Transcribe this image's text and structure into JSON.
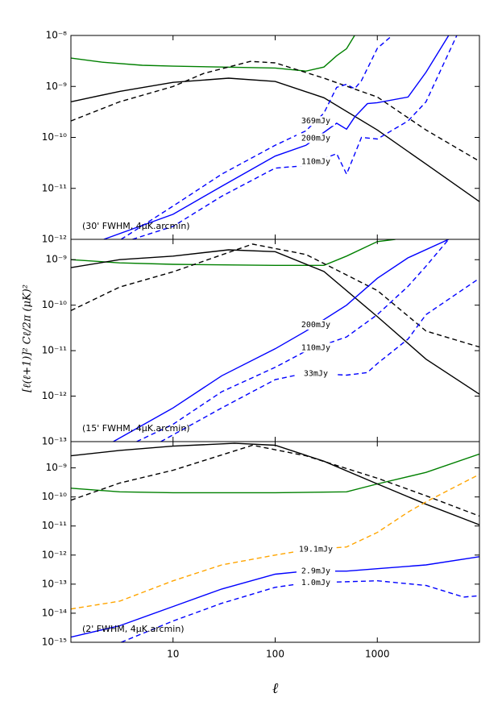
{
  "chart_data": [
    {
      "type": "line",
      "xscale": "log",
      "yscale": "log",
      "xlim": [
        1,
        10000
      ],
      "ylim": [
        1e-12,
        1e-08
      ],
      "yticks": [
        {
          "value": 1e-12,
          "label": "10⁻¹²"
        },
        {
          "value": 1e-11,
          "label": "10⁻¹¹"
        },
        {
          "value": 1e-10,
          "label": "10⁻¹⁰"
        },
        {
          "value": 1e-09,
          "label": "10⁻⁹"
        },
        {
          "value": 1e-08,
          "label": "10⁻⁸"
        }
      ],
      "annotation": "(30' FWHM, 4μK.arcmin)",
      "series": [
        {
          "color": "#008000",
          "dash": false,
          "x": [
            1,
            2,
            5,
            10,
            30,
            100,
            200,
            300,
            400,
            500,
            600
          ],
          "values": [
            3.6e-09,
            3e-09,
            2.6e-09,
            2.5e-09,
            2.4e-09,
            2.3e-09,
            2e-09,
            2.4e-09,
            4e-09,
            5.5e-09,
            1e-08
          ]
        },
        {
          "color": "#000000",
          "dash": false,
          "x": [
            1,
            3,
            10,
            35,
            100,
            300,
            1000,
            3000,
            10000
          ],
          "values": [
            5e-10,
            8e-10,
            1.2e-09,
            1.45e-09,
            1.25e-09,
            6e-10,
            1.4e-10,
            3e-11,
            5.5e-12
          ]
        },
        {
          "color": "#000000",
          "dash": true,
          "x": [
            1,
            3,
            10,
            20,
            57,
            100,
            300,
            1000,
            3000,
            10000
          ],
          "values": [
            2.1e-10,
            5e-10,
            1e-09,
            1.8e-09,
            3.1e-09,
            2.9e-09,
            1.45e-09,
            6.2e-10,
            1.4e-10,
            3.4e-11
          ]
        },
        {
          "name": "369mJy",
          "color": "#0000ff",
          "dash": true,
          "x": [
            3.1,
            10,
            30,
            100,
            200,
            300,
            400,
            500,
            600,
            700,
            1000,
            1400
          ],
          "values": [
            1e-12,
            4.5e-12,
            1.9e-11,
            7e-11,
            1.35e-10,
            3e-10,
            9.6e-10,
            1.1e-09,
            9e-10,
            1.3e-09,
            5.6e-09,
            1e-08
          ]
        },
        {
          "name": "200mJy",
          "color": "#0000ff",
          "dash": false,
          "x": [
            2.1,
            10,
            30,
            100,
            200,
            400,
            500,
            600,
            800,
            1000,
            2000,
            3000,
            5000
          ],
          "values": [
            1e-12,
            3.1e-12,
            1.1e-11,
            4.3e-11,
            7e-11,
            1.9e-10,
            1.45e-10,
            2.5e-10,
            4.6e-10,
            4.8e-10,
            6.2e-10,
            1.9e-09,
            1e-08
          ]
        },
        {
          "name": "110mJy",
          "color": "#0000ff",
          "dash": true,
          "x": [
            4,
            10,
            30,
            100,
            200,
            400,
            500,
            700,
            1000,
            2000,
            3000,
            6000
          ],
          "values": [
            1e-12,
            1.8e-12,
            7e-12,
            2.5e-11,
            2.8e-11,
            4.8e-11,
            1.9e-11,
            1e-10,
            9.3e-11,
            2.1e-10,
            5e-10,
            1e-08
          ]
        }
      ]
    },
    {
      "type": "line",
      "xscale": "log",
      "yscale": "log",
      "xlim": [
        1,
        10000
      ],
      "ylim": [
        1e-13,
        2.8e-09
      ],
      "yticks": [
        {
          "value": 1e-13,
          "label": "10⁻¹³"
        },
        {
          "value": 1e-12,
          "label": "10⁻¹²"
        },
        {
          "value": 1e-11,
          "label": "10⁻¹¹"
        },
        {
          "value": 1e-10,
          "label": "10⁻¹⁰"
        },
        {
          "value": 1e-09,
          "label": "10⁻⁹"
        }
      ],
      "ylabel": "[ℓ(ℓ+1)]² Cℓ/2π  (μK)²",
      "annotation": "(15' FWHM, 4μK.arcmin)",
      "series": [
        {
          "color": "#008000",
          "dash": false,
          "x": [
            1,
            3,
            10,
            100,
            300,
            500,
            1000,
            1500
          ],
          "values": [
            1e-09,
            8.5e-10,
            7.9e-10,
            7.5e-10,
            7.5e-10,
            1.2e-09,
            2.5e-09,
            2.8e-09
          ]
        },
        {
          "color": "#000000",
          "dash": false,
          "x": [
            1,
            3,
            10,
            35,
            100,
            300,
            1000,
            3000,
            10000
          ],
          "values": [
            6.7e-10,
            1e-09,
            1.2e-09,
            1.65e-09,
            1.5e-09,
            5.5e-10,
            5.6e-11,
            6.5e-12,
            1.1e-12
          ]
        },
        {
          "color": "#000000",
          "dash": true,
          "x": [
            1,
            3,
            10,
            60,
            200,
            1000,
            3000,
            10000
          ],
          "values": [
            7.6e-11,
            2.5e-10,
            5.4e-10,
            2.2e-09,
            1.3e-09,
            2.1e-10,
            2.7e-11,
            1.2e-11
          ]
        },
        {
          "name": "200mJy",
          "color": "#0000ff",
          "dash": false,
          "x": [
            2.6,
            10,
            30,
            100,
            200,
            500,
            1000,
            2000,
            5000
          ],
          "values": [
            1e-13,
            5.5e-13,
            2.8e-12,
            1.1e-11,
            2.7e-11,
            1e-10,
            3.9e-10,
            1.1e-09,
            2.8e-09
          ]
        },
        {
          "name": "110mJy",
          "color": "#0000ff",
          "dash": true,
          "x": [
            4.4,
            10,
            30,
            100,
            200,
            500,
            1000,
            2000,
            3000,
            5000
          ],
          "values": [
            1e-13,
            2.4e-13,
            1.25e-12,
            4.3e-12,
            9.8e-12,
            2e-11,
            6.2e-11,
            2.6e-10,
            7.2e-10,
            2.8e-09
          ]
        },
        {
          "name": "33mJy",
          "color": "#0000ff",
          "dash": true,
          "x": [
            7.6,
            30,
            100,
            200,
            500,
            800,
            1000,
            2000,
            3000,
            10000
          ],
          "values": [
            1e-13,
            5.5e-13,
            2.3e-12,
            3.2e-12,
            2.9e-12,
            3.3e-12,
            5.2e-12,
            1.8e-11,
            6.2e-11,
            3.9e-10
          ]
        }
      ]
    },
    {
      "type": "line",
      "xscale": "log",
      "yscale": "log",
      "xlim": [
        1,
        10000
      ],
      "ylim": [
        1e-15,
        8e-09
      ],
      "xticks": [
        10,
        100,
        1000
      ],
      "xlabel": "ℓ",
      "yticks": [
        {
          "value": 1e-15,
          "label": "10⁻¹⁵"
        },
        {
          "value": 1e-14,
          "label": "10⁻¹⁴"
        },
        {
          "value": 1e-13,
          "label": "10⁻¹³"
        },
        {
          "value": 1e-12,
          "label": "10⁻¹²"
        },
        {
          "value": 1e-11,
          "label": "10⁻¹¹"
        },
        {
          "value": 1e-10,
          "label": "10⁻¹⁰"
        },
        {
          "value": 1e-09,
          "label": "10⁻⁹"
        }
      ],
      "annotation": "(2' FWHM, 4μK.arcmin)",
      "series": [
        {
          "color": "#008000",
          "dash": false,
          "x": [
            1,
            3,
            10,
            100,
            500,
            1000,
            3000,
            10000
          ],
          "values": [
            2e-10,
            1.5e-10,
            1.4e-10,
            1.4e-10,
            1.5e-10,
            2.8e-10,
            7e-10,
            3e-09
          ]
        },
        {
          "color": "#000000",
          "dash": false,
          "x": [
            1,
            3,
            10,
            40,
            100,
            300,
            1000,
            3000,
            10000
          ],
          "values": [
            2.6e-09,
            4e-09,
            5.6e-09,
            7e-09,
            6e-09,
            1.7e-09,
            2.8e-10,
            5.6e-11,
            1.1e-11
          ]
        },
        {
          "color": "#000000",
          "dash": true,
          "x": [
            1,
            3,
            10,
            60,
            200,
            1000,
            3000,
            10000
          ],
          "values": [
            7.7e-11,
            3e-10,
            8.3e-10,
            6e-09,
            2.6e-09,
            4.4e-10,
            1.1e-10,
            2.2e-11
          ]
        },
        {
          "name": "19.1mJy",
          "color": "#ffa500",
          "dash": true,
          "x": [
            1,
            3,
            10,
            30,
            100,
            200,
            500,
            1000,
            2000,
            3000,
            10000
          ],
          "values": [
            1.4e-14,
            2.6e-14,
            1.3e-13,
            4.6e-13,
            1e-12,
            1.5e-12,
            1.9e-12,
            6e-12,
            3e-11,
            6.8e-11,
            6e-10
          ]
        },
        {
          "name": "2.9mJy",
          "color": "#0000ff",
          "dash": false,
          "x": [
            1,
            3,
            10,
            30,
            100,
            200,
            500,
            1000,
            3000,
            10000
          ],
          "values": [
            1.5e-15,
            3.7e-15,
            1.7e-14,
            6.8e-14,
            2.2e-13,
            2.8e-13,
            2.8e-13,
            3.4e-13,
            4.6e-13,
            8.8e-13
          ]
        },
        {
          "name": "1.0mJy",
          "color": "#0000ff",
          "dash": true,
          "x": [
            3.1,
            10,
            30,
            100,
            200,
            1000,
            3000,
            7000,
            10000
          ],
          "values": [
            1e-15,
            5.4e-15,
            2.2e-14,
            7.8e-14,
            1.1e-13,
            1.3e-13,
            9e-14,
            3.6e-14,
            4e-14
          ]
        }
      ]
    }
  ]
}
